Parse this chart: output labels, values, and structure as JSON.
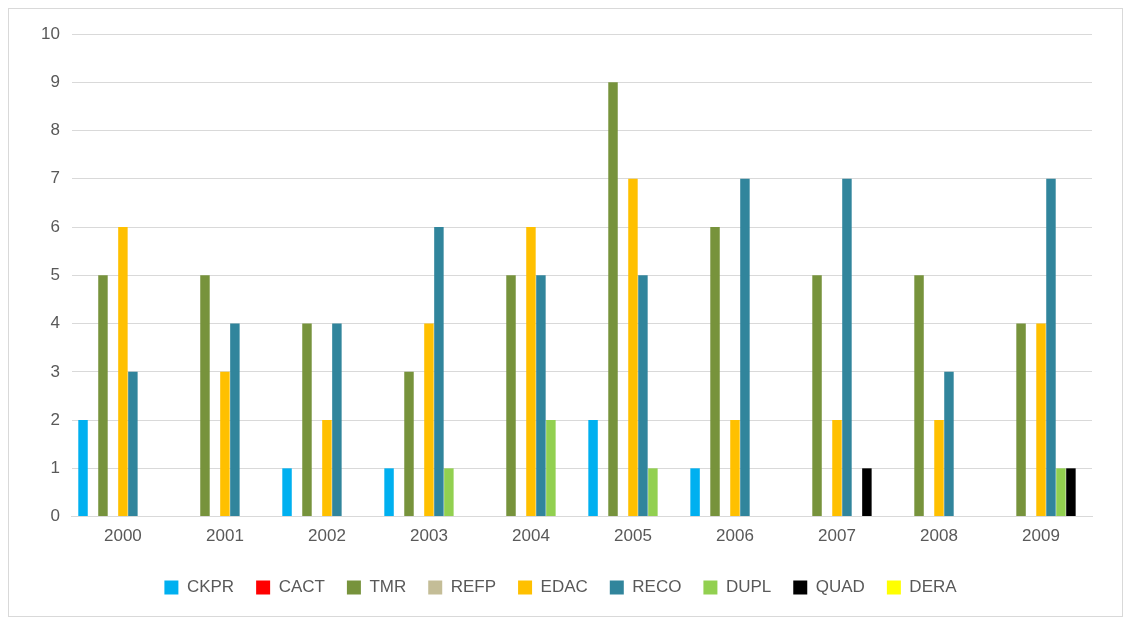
{
  "chart_data": {
    "type": "bar",
    "categories": [
      "2000",
      "2001",
      "2002",
      "2003",
      "2004",
      "2005",
      "2006",
      "2007",
      "2008",
      "2009"
    ],
    "series": [
      {
        "name": "CKPR",
        "color": "#00b0f0",
        "values": [
          2,
          0,
          1,
          1,
          0,
          2,
          1,
          0,
          0,
          0
        ]
      },
      {
        "name": "CACT",
        "color": "#ff0000",
        "values": [
          0,
          0,
          0,
          0,
          0,
          0,
          0,
          0,
          0,
          0
        ]
      },
      {
        "name": "TMR",
        "color": "#77933c",
        "values": [
          5,
          5,
          4,
          3,
          5,
          9,
          6,
          5,
          5,
          4
        ]
      },
      {
        "name": "REFP",
        "color": "#c4bd97",
        "values": [
          0,
          0,
          0,
          0,
          0,
          0,
          0,
          0,
          0,
          0
        ]
      },
      {
        "name": "EDAC",
        "color": "#ffc000",
        "values": [
          6,
          3,
          2,
          4,
          6,
          7,
          2,
          2,
          2,
          4
        ]
      },
      {
        "name": "RECO",
        "color": "#31859c",
        "values": [
          3,
          4,
          4,
          6,
          5,
          5,
          7,
          7,
          3,
          7
        ]
      },
      {
        "name": "DUPL",
        "color": "#92d050",
        "values": [
          0,
          0,
          0,
          1,
          2,
          1,
          0,
          0,
          0,
          1
        ]
      },
      {
        "name": "QUAD",
        "color": "#000000",
        "values": [
          0,
          0,
          0,
          0,
          0,
          0,
          0,
          1,
          0,
          1
        ]
      },
      {
        "name": "DERA",
        "color": "#ffff00",
        "values": [
          0,
          0,
          0,
          0,
          0,
          0,
          0,
          0,
          0,
          0
        ]
      }
    ],
    "ylim": [
      0,
      10
    ],
    "yticks": [
      0,
      1,
      2,
      3,
      4,
      5,
      6,
      7,
      8,
      9,
      10
    ],
    "grid": "y",
    "legend": "bottom"
  }
}
